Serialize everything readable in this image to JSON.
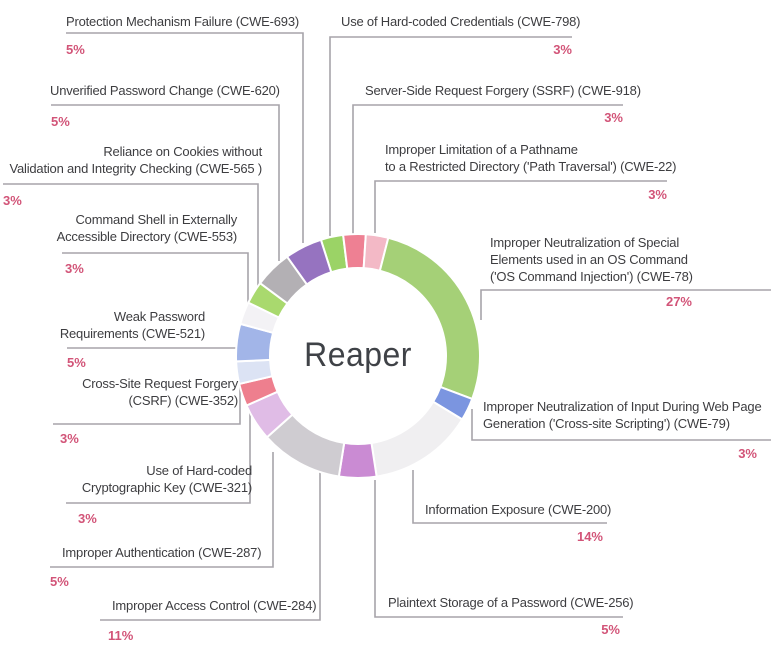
{
  "title": "Reaper CWE distribution donut chart",
  "chart_data": {
    "type": "pie",
    "subtype": "donut",
    "center_label": "Reaper",
    "unit": "%",
    "legend_position": "labels-around-chart",
    "total": 101,
    "colors": {
      "percent_text": "#d25478",
      "label_text": "#3d3d40",
      "connector_line": "#a7a4aa",
      "background": "#ffffff"
    },
    "segments": [
      {
        "cwe": "cwe-798",
        "label": "Use of Hard-coded Credentials (CWE-798)",
        "label_lines": [
          "Use of Hard-coded Credentials (CWE-798)"
        ],
        "value": 3,
        "percent_label": "3%",
        "color": "#9bd366"
      },
      {
        "cwe": "cwe-918",
        "label": "Server-Side Request Forgery (SSRF) (CWE-918)",
        "label_lines": [
          "Server-Side Request Forgery (SSRF) (CWE-918)"
        ],
        "value": 3,
        "percent_label": "3%",
        "color": "#ee8093"
      },
      {
        "cwe": "cwe-22",
        "label": "Improper Limitation of a Pathname to a Restricted Directory ('Path Traversal') (CWE-22)",
        "label_lines": [
          "Improper Limitation of a Pathname",
          "to a Restricted Directory ('Path Traversal') (CWE-22)"
        ],
        "value": 3,
        "percent_label": "3%",
        "color": "#f3b9c6"
      },
      {
        "cwe": "cwe-78",
        "label": "Improper Neutralization of Special Elements used in an OS Command ('OS Command Injection') (CWE-78)",
        "label_lines": [
          "Improper Neutralization of Special",
          "Elements used in an OS Command",
          "('OS Command Injection') (CWE-78)"
        ],
        "value": 27,
        "percent_label": "27%",
        "color": "#a5d077"
      },
      {
        "cwe": "cwe-79",
        "label": "Improper Neutralization of Input During Web Page Generation ('Cross-site Scripting') (CWE-79)",
        "label_lines": [
          "Improper Neutralization of Input During Web Page",
          "Generation ('Cross-site Scripting') (CWE-79)"
        ],
        "value": 3,
        "percent_label": "3%",
        "color": "#7b95e0"
      },
      {
        "cwe": "cwe-200",
        "label": "Information Exposure (CWE-200)",
        "label_lines": [
          "Information Exposure (CWE-200)"
        ],
        "value": 14,
        "percent_label": "14%",
        "color": "#f0eff1"
      },
      {
        "cwe": "cwe-256",
        "label": "Plaintext Storage of a Password (CWE-256)",
        "label_lines": [
          "Plaintext Storage of a Password (CWE-256)"
        ],
        "value": 5,
        "percent_label": "5%",
        "color": "#ca8bd3"
      },
      {
        "cwe": "cwe-284",
        "label": "Improper Access Control (CWE-284)",
        "label_lines": [
          "Improper Access Control (CWE-284)"
        ],
        "value": 11,
        "percent_label": "11%",
        "color": "#cfccd1"
      },
      {
        "cwe": "cwe-287",
        "label": "Improper Authentication (CWE-287)",
        "label_lines": [
          "Improper Authentication (CWE-287)"
        ],
        "value": 5,
        "percent_label": "5%",
        "color": "#e0bce6"
      },
      {
        "cwe": "cwe-321",
        "label": "Use of Hard-coded Cryptographic Key (CWE-321)",
        "label_lines": [
          "Use of Hard-coded",
          "Cryptographic Key (CWE-321)"
        ],
        "value": 3,
        "percent_label": "3%",
        "color": "#ee7f8e"
      },
      {
        "cwe": "cwe-352",
        "label": "Cross-Site Request Forgery (CSRF) (CWE-352)",
        "label_lines": [
          "Cross-Site Request Forgery",
          "(CSRF) (CWE-352)"
        ],
        "value": 3,
        "percent_label": "3%",
        "color": "#dce3f4"
      },
      {
        "cwe": "cwe-521",
        "label": "Weak Password Requirements (CWE-521)",
        "label_lines": [
          "Weak Password",
          "Requirements (CWE-521)"
        ],
        "value": 5,
        "percent_label": "5%",
        "color": "#a2b5e8"
      },
      {
        "cwe": "cwe-553",
        "label": "Command Shell in Externally Accessible Directory (CWE-553)",
        "label_lines": [
          "Command Shell in Externally",
          "Accessible Directory (CWE-553)"
        ],
        "value": 3,
        "percent_label": "3%",
        "color": "#f3f2f5"
      },
      {
        "cwe": "cwe-565",
        "label": "Reliance on Cookies without Validation and Integrity Checking (CWE-565 )",
        "label_lines": [
          "Reliance on Cookies without",
          "Validation and Integrity Checking (CWE-565 )"
        ],
        "value": 3,
        "percent_label": "3%",
        "color": "#a9d96e"
      },
      {
        "cwe": "cwe-620",
        "label": "Unverified Password Change (CWE-620)",
        "label_lines": [
          "Unverified Password Change (CWE-620)"
        ],
        "value": 5,
        "percent_label": "5%",
        "color": "#b3b0b4"
      },
      {
        "cwe": "cwe-693",
        "label": "Protection Mechanism Failure (CWE-693)",
        "label_lines": [
          "Protection Mechanism Failure (CWE-693)"
        ],
        "value": 5,
        "percent_label": "5%",
        "color": "#9673c0"
      }
    ]
  }
}
